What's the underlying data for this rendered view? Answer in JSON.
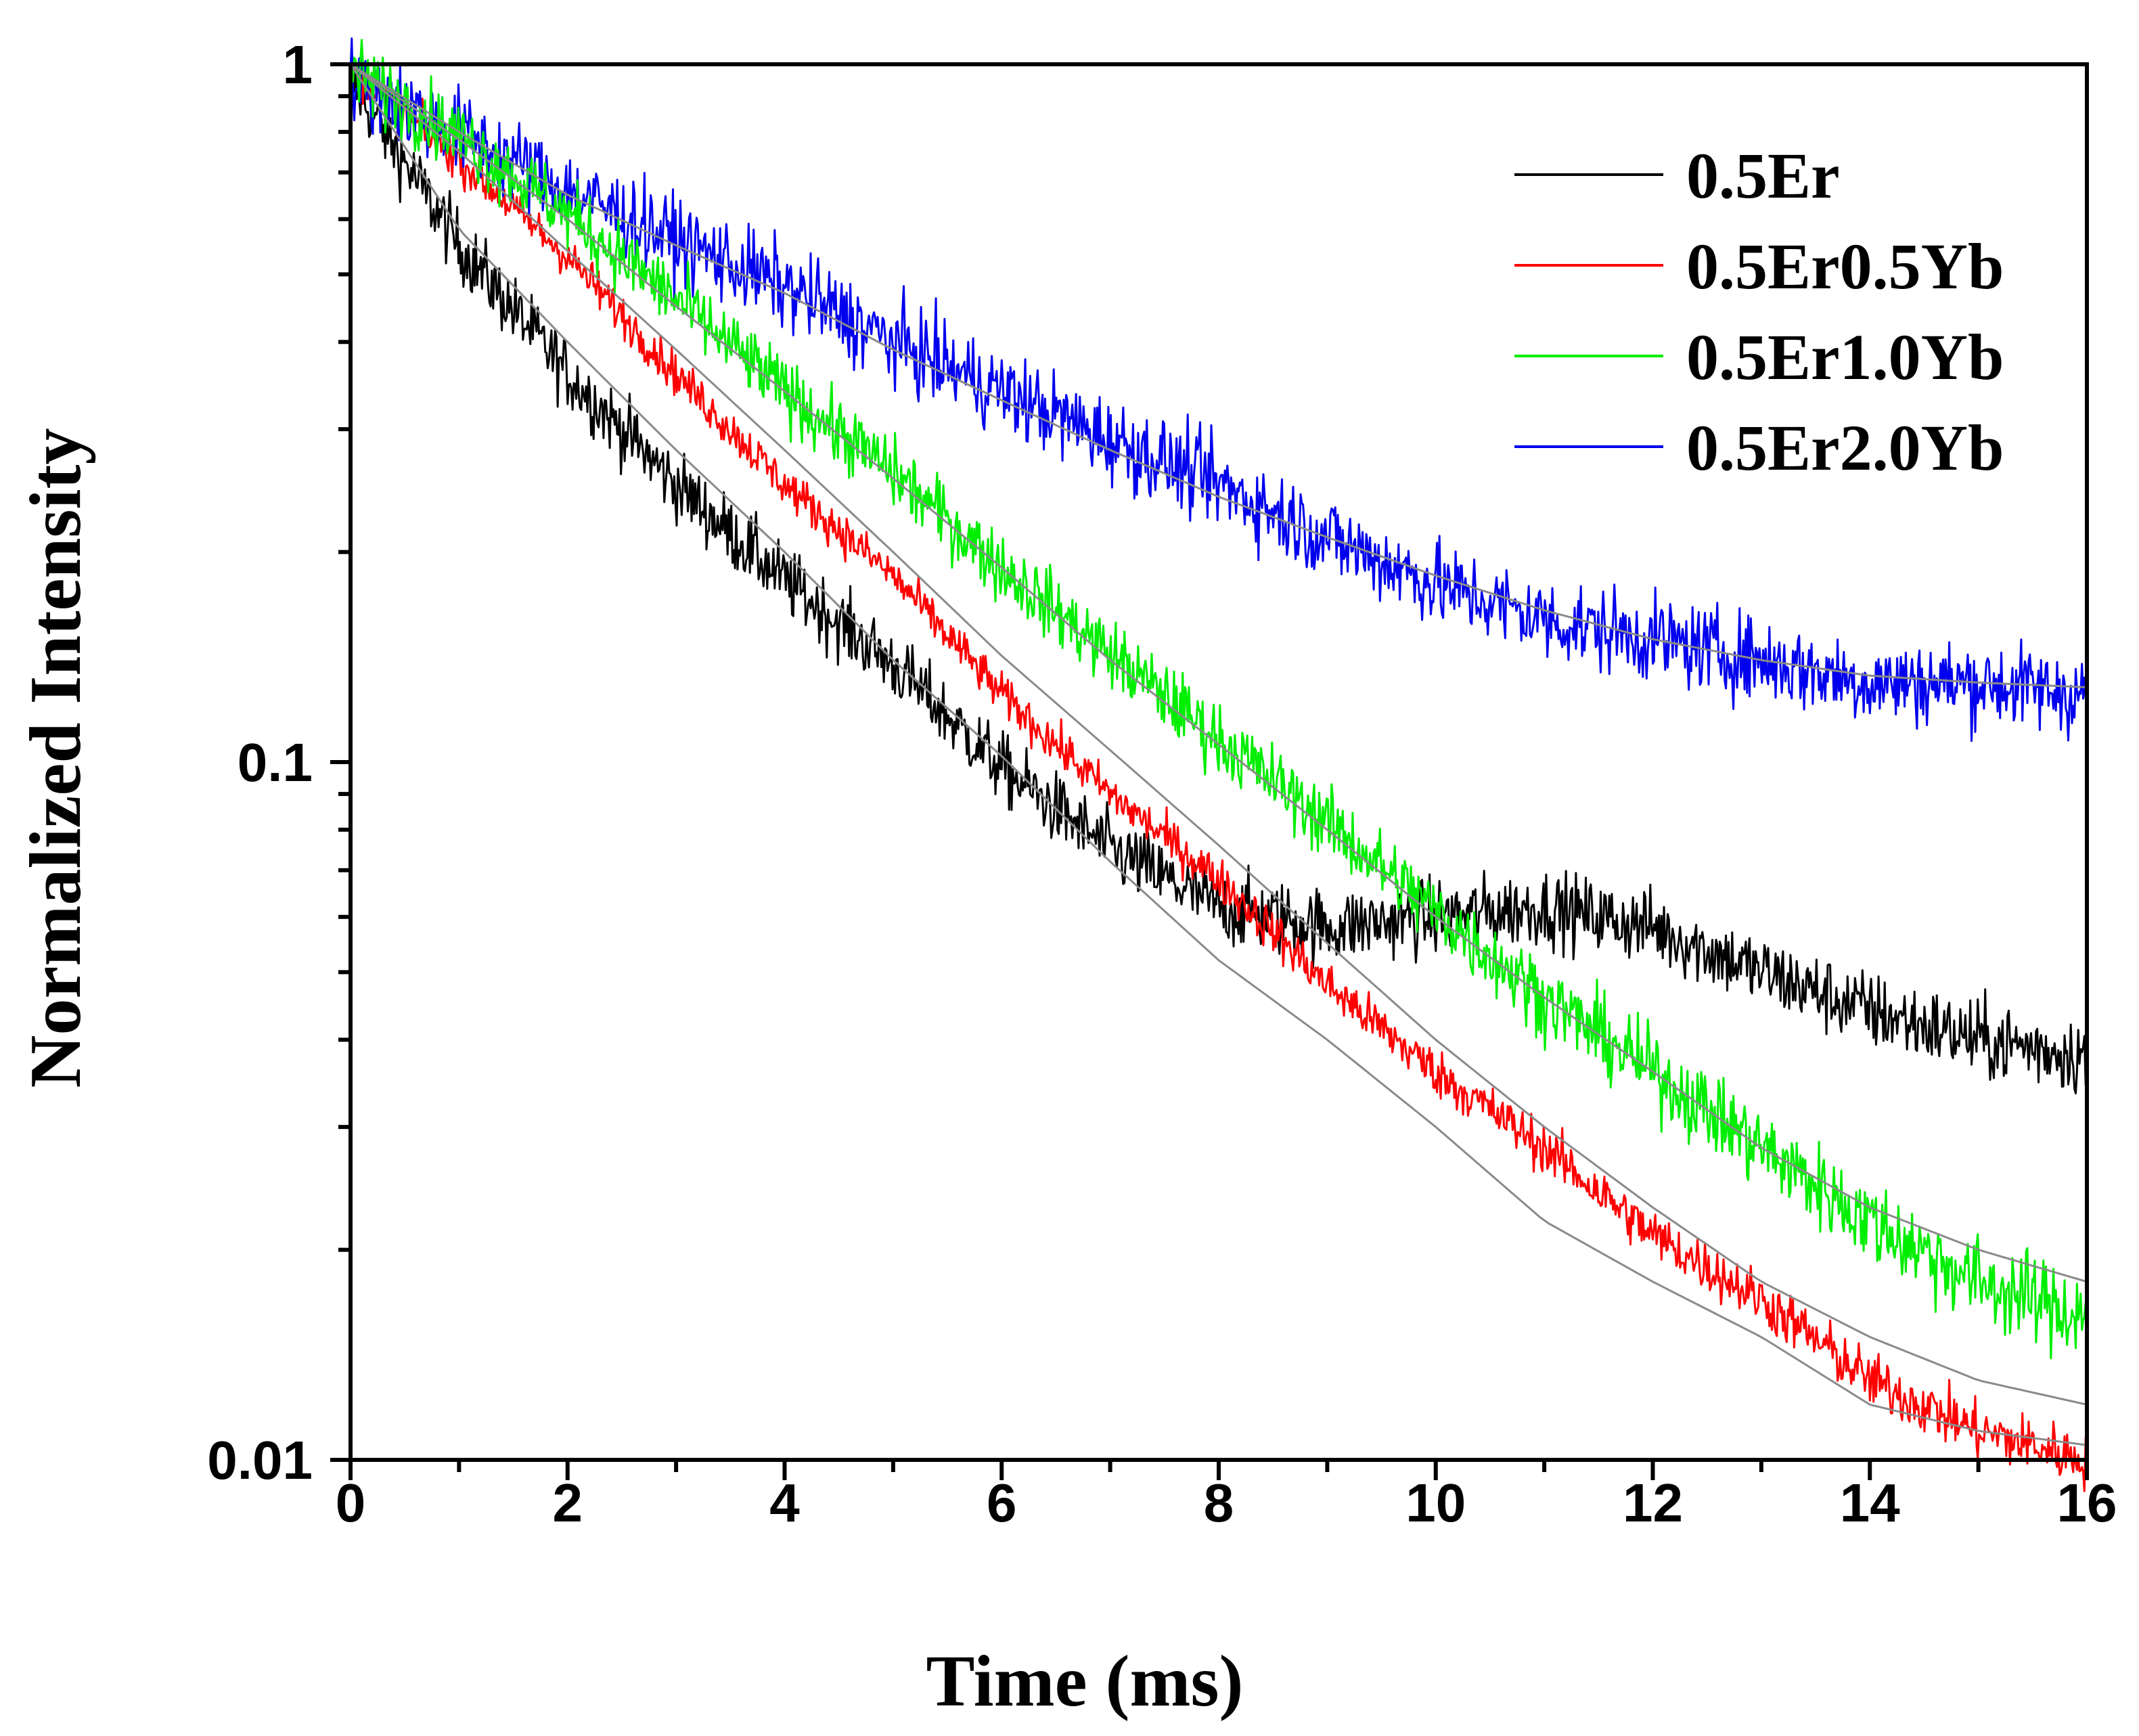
{
  "chart_data": {
    "type": "line",
    "title": "",
    "xlabel": "Time (ms)",
    "ylabel": "Normalized Intensity",
    "xlim": [
      0,
      16
    ],
    "ylim": [
      0.01,
      1
    ],
    "yscale": "log",
    "x_ticks": [
      "0",
      "2",
      "4",
      "6",
      "8",
      "10",
      "12",
      "14",
      "16"
    ],
    "y_ticks": [
      "0.01",
      "0.1",
      "1"
    ],
    "legend_position": "top-right",
    "series": [
      {
        "name": "0.5Er",
        "color": "#000000",
        "noise": 0.05,
        "fit": [
          1.0,
          0.58,
          0.4,
          0.28,
          0.2,
          0.14,
          0.102,
          0.072,
          0.052,
          0.04,
          0.03,
          0.022,
          0.018,
          0.015,
          0.012,
          0.011,
          0.0105
        ],
        "points": [
          0.95,
          0.55,
          0.36,
          0.25,
          0.182,
          0.138,
          0.098,
          0.075,
          0.062,
          0.058,
          0.06,
          0.062,
          0.058,
          0.05,
          0.044,
          0.04,
          0.038
        ]
      },
      {
        "name": "0.5Er0.5Yb",
        "color": "#ff0000",
        "noise": 0.03,
        "fit": [
          1.0,
          0.75,
          0.54,
          0.39,
          0.28,
          0.2,
          0.142,
          0.104,
          0.076,
          0.055,
          0.04,
          0.03,
          0.023,
          0.018,
          0.015,
          0.013,
          0.012
        ],
        "points": [
          0.98,
          0.73,
          0.53,
          0.36,
          0.25,
          0.185,
          0.125,
          0.09,
          0.068,
          0.048,
          0.036,
          0.028,
          0.021,
          0.017,
          0.013,
          0.011,
          0.01
        ]
      },
      {
        "name": "0.5Er1.0Yb",
        "color": "#00ee00",
        "noise": 0.05,
        "fit": [
          1.0,
          0.78,
          0.6,
          0.45,
          0.34,
          0.255,
          0.19,
          0.14,
          0.106,
          0.08,
          0.06,
          0.046,
          0.036,
          0.028,
          0.023,
          0.02,
          0.018
        ],
        "points": [
          0.98,
          0.79,
          0.61,
          0.46,
          0.34,
          0.26,
          0.19,
          0.143,
          0.108,
          0.082,
          0.061,
          0.046,
          0.036,
          0.028,
          0.022,
          0.018,
          0.016
        ]
      },
      {
        "name": "0.5Er2.0Yb",
        "color": "#0000ee",
        "noise": 0.06,
        "fit": [
          1.0,
          0.8,
          0.65,
          0.55,
          0.47,
          0.39,
          0.33,
          0.28,
          0.24,
          0.21,
          0.185,
          0.165,
          0.15,
          0.14,
          0.133,
          0.13,
          0.128
        ],
        "points": [
          0.95,
          0.8,
          0.66,
          0.56,
          0.48,
          0.4,
          0.34,
          0.29,
          0.25,
          0.21,
          0.18,
          0.16,
          0.15,
          0.14,
          0.13,
          0.13,
          0.125
        ]
      }
    ]
  }
}
